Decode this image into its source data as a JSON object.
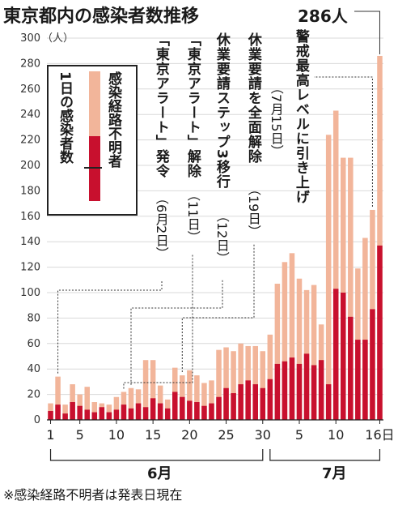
{
  "title": "東京都内の感染者数推移",
  "peak_label": "286人",
  "note": "※感染経路不明者は発表日現在",
  "legend": {
    "total_label": "1日の感染者数",
    "unknown_label": "感染経路不明者"
  },
  "colors": {
    "total": "#f2b59a",
    "unknown": "#c8102e",
    "title_bg": "#ffffff"
  },
  "annotations": [
    {
      "main": "「東京アラート」発令",
      "sub": "（6月2日）"
    },
    {
      "main": "「東京アラート」解除",
      "sub": "（11日）"
    },
    {
      "main": "休業要請ステップ3移行",
      "sub": "（12日）"
    },
    {
      "main": "休業要請を全面解除",
      "sub": "（19日）"
    },
    {
      "main": "警戒最高レベルに引き上げ",
      "sub": "（7月15日）"
    }
  ],
  "chart_data": {
    "type": "bar",
    "ylabel": "（人）",
    "ylim": [
      0,
      300
    ],
    "yticks": [
      0,
      20,
      40,
      60,
      80,
      100,
      120,
      140,
      160,
      180,
      200,
      220,
      240,
      260,
      280,
      300
    ],
    "xtick_labels": [
      "1",
      "5",
      "10",
      "15",
      "20",
      "25",
      "30",
      "5",
      "10",
      "16日"
    ],
    "months": [
      "6月",
      "7月"
    ],
    "categories": [
      "6/1",
      "6/2",
      "6/3",
      "6/4",
      "6/5",
      "6/6",
      "6/7",
      "6/8",
      "6/9",
      "6/10",
      "6/11",
      "6/12",
      "6/13",
      "6/14",
      "6/15",
      "6/16",
      "6/17",
      "6/18",
      "6/19",
      "6/20",
      "6/21",
      "6/22",
      "6/23",
      "6/24",
      "6/25",
      "6/26",
      "6/27",
      "6/28",
      "6/29",
      "6/30",
      "7/1",
      "7/2",
      "7/3",
      "7/4",
      "7/5",
      "7/6",
      "7/7",
      "7/8",
      "7/9",
      "7/10",
      "7/11",
      "7/12",
      "7/13",
      "7/14",
      "7/15",
      "7/16"
    ],
    "series": [
      {
        "name": "1日の感染者数",
        "values": [
          13,
          34,
          12,
          28,
          20,
          26,
          14,
          13,
          12,
          18,
          22,
          25,
          24,
          47,
          47,
          27,
          16,
          41,
          35,
          39,
          35,
          29,
          31,
          55,
          57,
          54,
          60,
          58,
          58,
          54,
          67,
          107,
          124,
          131,
          111,
          102,
          106,
          75,
          224,
          243,
          206,
          206,
          119,
          143,
          165,
          286
        ]
      },
      {
        "name": "感染経路不明者",
        "values": [
          7,
          12,
          5,
          14,
          11,
          8,
          6,
          10,
          6,
          8,
          12,
          9,
          13,
          10,
          17,
          13,
          9,
          22,
          18,
          15,
          14,
          11,
          13,
          18,
          25,
          21,
          28,
          31,
          28,
          25,
          32,
          44,
          46,
          49,
          44,
          52,
          43,
          47,
          28,
          103,
          100,
          81,
          63,
          63,
          87,
          137
        ]
      }
    ]
  }
}
